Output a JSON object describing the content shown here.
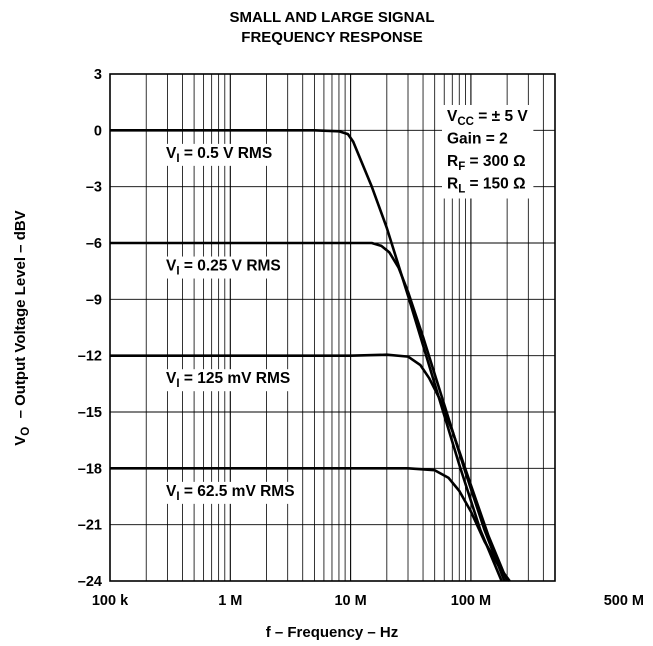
{
  "chart_data": {
    "type": "line",
    "title_lines": [
      "SMALL AND LARGE SIGNAL",
      "FREQUENCY RESPONSE"
    ],
    "xlabel": "f – Frequency – Hz",
    "ylabel": {
      "main": "V",
      "sub": "O",
      "rest": "  – Output Voltage Level – dBV"
    },
    "x_scale": "log",
    "xlim": [
      100000,
      500000000
    ],
    "ylim": [
      -24,
      3
    ],
    "grid": true,
    "x_ticks": [
      {
        "value": 100000,
        "label": "100 k"
      },
      {
        "value": 1000000,
        "label": "1 M"
      },
      {
        "value": 10000000,
        "label": "10 M"
      },
      {
        "value": 100000000,
        "label": "100 M"
      },
      {
        "value": 500000000,
        "label": "500 M"
      }
    ],
    "y_ticks": [
      {
        "value": 3,
        "label": "3"
      },
      {
        "value": 0,
        "label": "0"
      },
      {
        "value": -3,
        "label": "–3"
      },
      {
        "value": -6,
        "label": "–6"
      },
      {
        "value": -9,
        "label": "–9"
      },
      {
        "value": -12,
        "label": "–12"
      },
      {
        "value": -15,
        "label": "–15"
      },
      {
        "value": -18,
        "label": "–18"
      },
      {
        "value": -21,
        "label": "–21"
      },
      {
        "value": -24,
        "label": "–24"
      }
    ],
    "series": [
      {
        "label": {
          "main": "V",
          "sub": "I",
          "rest": " = 0.5 V RMS"
        },
        "x": [
          100000,
          1000000,
          5000000,
          8000000,
          9500000,
          10500000,
          12000000,
          15000000,
          20000000,
          30000000,
          50000000,
          80000000,
          120000000,
          180000000
        ],
        "y": [
          0,
          0,
          0,
          -0.05,
          -0.2,
          -0.6,
          -1.5,
          -3.0,
          -5.2,
          -8.8,
          -13.5,
          -17.8,
          -21.3,
          -24
        ]
      },
      {
        "label": {
          "main": "V",
          "sub": "I",
          "rest": " = 0.25 V RMS"
        },
        "x": [
          100000,
          1000000,
          10000000,
          15000000,
          18000000,
          21000000,
          25000000,
          30000000,
          40000000,
          60000000,
          90000000,
          130000000,
          190000000
        ],
        "y": [
          -6,
          -6,
          -6,
          -6,
          -6.15,
          -6.5,
          -7.3,
          -8.6,
          -11.0,
          -14.6,
          -18.2,
          -21.3,
          -24
        ]
      },
      {
        "label": {
          "main": "V",
          "sub": "I",
          "rest": " = 125 mV RMS"
        },
        "x": [
          100000,
          1000000,
          10000000,
          20000000,
          30000000,
          38000000,
          45000000,
          55000000,
          70000000,
          100000000,
          140000000,
          200000000
        ],
        "y": [
          -12,
          -12,
          -12,
          -11.95,
          -12.05,
          -12.5,
          -13.2,
          -14.3,
          -16.0,
          -18.9,
          -21.6,
          -24
        ]
      },
      {
        "label": {
          "main": "V",
          "sub": "I",
          "rest": " = 62.5 mV RMS"
        },
        "x": [
          100000,
          1000000,
          10000000,
          30000000,
          50000000,
          65000000,
          80000000,
          100000000,
          130000000,
          170000000,
          210000000
        ],
        "y": [
          -18,
          -18,
          -18,
          -18,
          -18.1,
          -18.5,
          -19.2,
          -20.3,
          -21.9,
          -23.2,
          -24
        ]
      }
    ],
    "annotation_lines": [
      {
        "main": "V",
        "sub": "CC",
        "rest": " = ± 5 V"
      },
      {
        "main": "Gain = 2",
        "sub": "",
        "rest": ""
      },
      {
        "main": "R",
        "sub": "F",
        "rest": " = 300 Ω"
      },
      {
        "main": "R",
        "sub": "L",
        "rest": " = 150 Ω"
      }
    ]
  }
}
